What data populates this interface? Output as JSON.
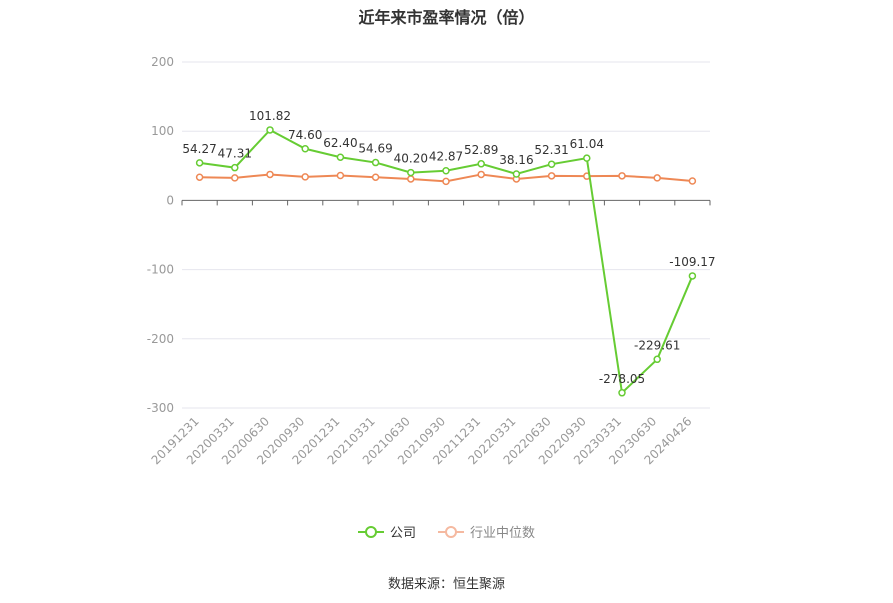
{
  "chart_data": {
    "type": "line",
    "title": "近年来市盈率情况（倍）",
    "categories": [
      "20191231",
      "20200331",
      "20200630",
      "20200930",
      "20201231",
      "20210331",
      "20210630",
      "20210930",
      "20211231",
      "20220331",
      "20220630",
      "20220930",
      "20230331",
      "20230630",
      "20240426"
    ],
    "ylim": [
      -300,
      200
    ],
    "yticks": [
      "200",
      "100",
      "0",
      "-100",
      "-200",
      "-300"
    ],
    "grid": true,
    "legend_position": "bottom",
    "series": [
      {
        "name": "公司",
        "color": "#66cc33",
        "values": [
          54.27,
          47.31,
          101.82,
          74.6,
          62.4,
          54.69,
          40.2,
          42.87,
          52.89,
          38.16,
          52.31,
          61.04,
          -278.05,
          -229.61,
          -109.17
        ],
        "labels": [
          "54.27",
          "47.31",
          "101.82",
          "74.60",
          "62.40",
          "54.69",
          "40.20",
          "42.87",
          "52.89",
          "38.16",
          "52.31",
          "61.04",
          "-278.05",
          "-229.61",
          "-109.17"
        ]
      },
      {
        "name": "行业中位数",
        "color": "#ee8855",
        "values": [
          33.5,
          32.5,
          37.5,
          34.0,
          36.0,
          33.5,
          31.0,
          27.5,
          37.5,
          31.0,
          35.5,
          35.0,
          35.5,
          32.5,
          28.0
        ]
      }
    ]
  },
  "source": "数据来源：恒生聚源"
}
